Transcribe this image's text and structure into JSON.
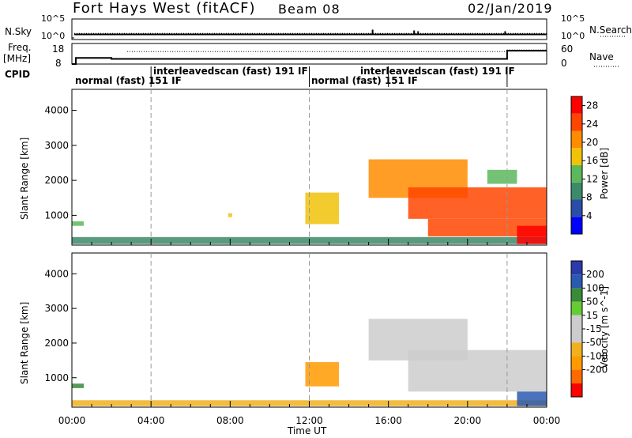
{
  "header": {
    "radar": "Fort Hays West (fitACF)",
    "beam": "Beam 08",
    "date": "02/Jan/2019"
  },
  "noise_panel": {
    "left_label": "N.Sky",
    "right_label": "N.Search",
    "left_ticks": [
      "10^5",
      "10^0"
    ],
    "right_ticks": [
      "10^5",
      "10^0"
    ]
  },
  "freq_panel": {
    "left_label_1": "Freq.",
    "left_label_2": "[MHz]",
    "right_label": "Nave",
    "left_ticks": [
      "18",
      "8"
    ],
    "right_ticks": [
      "60",
      "0"
    ]
  },
  "cpid": {
    "label": "CPID",
    "segments": [
      {
        "text": "normal (fast) 151 IF",
        "start": 0.0,
        "end": 4.0
      },
      {
        "text": "interleavedscan (fast) 191 IF",
        "start": 4.0,
        "end": 12.0
      },
      {
        "text": "normal (fast) 151 IF",
        "start": 12.0,
        "end": 16.0
      },
      {
        "text": "interleavedscan (fast) 191 IF",
        "start": 16.0,
        "end": 22.0
      }
    ]
  },
  "colors": {
    "power": [
      "#0000ff",
      "#2a4ea8",
      "#3d8a6a",
      "#5cb85c",
      "#f0c20a",
      "#ff8c00",
      "#ff4500",
      "#ff0000"
    ],
    "velocity": [
      "#ff0000",
      "#ff6a00",
      "#ff9a00",
      "#f0b020",
      "#cccccc",
      "#cccccc",
      "#66cc33",
      "#3a8a3a",
      "#2a5ab0",
      "#2a3aaa"
    ]
  },
  "chart_data": [
    {
      "type": "heatmap",
      "title": "",
      "xlabel": "",
      "ylabel": "Slant Range [km]",
      "xlim": [
        0,
        24
      ],
      "ylim": [
        150,
        4600
      ],
      "yticks": [
        "1000",
        "2000",
        "3000",
        "4000"
      ],
      "ytick_values": [
        1000,
        2000,
        3000,
        4000
      ],
      "colorbar_label": "Power [dB]",
      "colorbar_ticks": [
        "4",
        "8",
        "12",
        "16",
        "20",
        "24",
        "28"
      ],
      "colorbar_values": [
        4,
        8,
        12,
        16,
        20,
        24,
        28
      ],
      "colorbar_range": [
        0,
        30
      ],
      "regions": [
        {
          "t0": 0.0,
          "t1": 24.0,
          "r0": 180,
          "r1": 380,
          "value": 8
        },
        {
          "t0": 0.0,
          "t1": 0.6,
          "r0": 700,
          "r1": 830,
          "value": 12
        },
        {
          "t0": 7.9,
          "t1": 8.1,
          "r0": 950,
          "r1": 1060,
          "value": 18
        },
        {
          "t0": 11.8,
          "t1": 13.5,
          "r0": 750,
          "r1": 1650,
          "value": 16
        },
        {
          "t0": 15.0,
          "t1": 20.0,
          "r0": 1500,
          "r1": 2600,
          "value": 20
        },
        {
          "t0": 17.0,
          "t1": 24.0,
          "r0": 900,
          "r1": 1800,
          "value": 24
        },
        {
          "t0": 18.0,
          "t1": 24.0,
          "r0": 400,
          "r1": 900,
          "value": 26
        },
        {
          "t0": 22.5,
          "t1": 24.0,
          "r0": 180,
          "r1": 700,
          "value": 30
        },
        {
          "t0": 21.0,
          "t1": 22.5,
          "r0": 1900,
          "r1": 2300,
          "value": 14
        }
      ]
    },
    {
      "type": "heatmap",
      "title": "",
      "xlabel": "Time UT",
      "ylabel": "Slant Range [km]",
      "xlim": [
        0,
        24
      ],
      "ylim": [
        150,
        4600
      ],
      "xticks": [
        "00:00",
        "04:00",
        "08:00",
        "12:00",
        "16:00",
        "20:00",
        "00:00"
      ],
      "xtick_values": [
        0,
        4,
        8,
        12,
        16,
        20,
        24
      ],
      "yticks": [
        "1000",
        "2000",
        "3000",
        "4000"
      ],
      "ytick_values": [
        1000,
        2000,
        3000,
        4000
      ],
      "colorbar_label": "Velocity [m s^-1]",
      "colorbar_ticks": [
        "200",
        "100",
        "50",
        "15",
        "-15",
        "-50",
        "-100",
        "-200"
      ],
      "colorbar_values": [
        200,
        100,
        50,
        15,
        -15,
        -50,
        -100,
        -200
      ],
      "regions": [
        {
          "t0": 0.0,
          "t1": 24.0,
          "r0": 180,
          "r1": 350,
          "value": -30
        },
        {
          "t0": 0.0,
          "t1": 0.6,
          "r0": 700,
          "r1": 830,
          "value": 40
        },
        {
          "t0": 11.8,
          "t1": 13.5,
          "r0": 750,
          "r1": 1450,
          "value": -60
        },
        {
          "t0": 15.0,
          "t1": 20.0,
          "r0": 1500,
          "r1": 2700,
          "value": 0
        },
        {
          "t0": 17.0,
          "t1": 24.0,
          "r0": 600,
          "r1": 1800,
          "value": 0
        },
        {
          "t0": 22.5,
          "t1": 24.0,
          "r0": 180,
          "r1": 600,
          "value": 60
        }
      ]
    }
  ],
  "noise_series": {
    "sky_level": 0.25,
    "search_level": 0.3
  },
  "freq_series": {
    "freq_steps": [
      {
        "t0": 0.0,
        "t1": 0.2,
        "v": 8
      },
      {
        "t0": 0.2,
        "t1": 2.0,
        "v": 11
      },
      {
        "t0": 2.0,
        "t1": 22.0,
        "v": 10.5
      },
      {
        "t0": 22.0,
        "t1": 24.0,
        "v": 14.5
      }
    ],
    "nave_level": 27
  }
}
